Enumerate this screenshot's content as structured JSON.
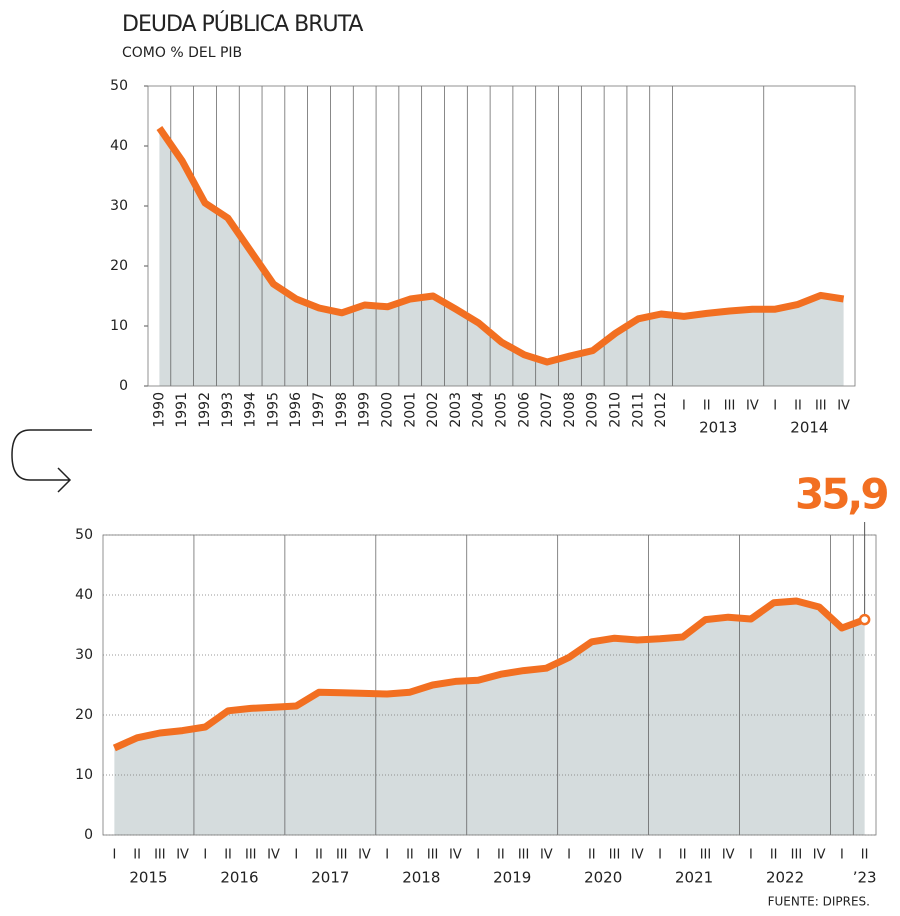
{
  "chart_data": [
    {
      "type": "area-line",
      "title": "DEUDA PÚBLICA BRUTA",
      "subtitle": "COMO % DEL PIB",
      "categories": [
        "1990",
        "1991",
        "1992",
        "1993",
        "1994",
        "1995",
        "1996",
        "1997",
        "1998",
        "1999",
        "2000",
        "2001",
        "2002",
        "2003",
        "2004",
        "2005",
        "2006",
        "2007",
        "2008",
        "2009",
        "2010",
        "2011",
        "2012",
        "I",
        "II",
        "III",
        "IV",
        "I",
        "II",
        "III",
        "IV"
      ],
      "groups": [
        {
          "label": "2013",
          "span": [
            23,
            26
          ]
        },
        {
          "label": "2014",
          "span": [
            27,
            30
          ]
        }
      ],
      "values": [
        43,
        37.5,
        30.5,
        28,
        22.5,
        17,
        14.5,
        13,
        12.2,
        13.5,
        13.2,
        14.5,
        15,
        12.8,
        10.5,
        7.3,
        5.2,
        4,
        5,
        5.9,
        8.8,
        11.2,
        12,
        11.6,
        12.1,
        12.5,
        12.8,
        12.8,
        13.6,
        15.1,
        14.5
      ],
      "color": "#f26f21",
      "fill": "#d5dcdd",
      "ylim": [
        0,
        50
      ],
      "yticks": [
        0,
        10,
        20,
        30,
        40,
        50
      ],
      "hgrid": false
    },
    {
      "type": "area-line",
      "categories": [
        "I",
        "II",
        "III",
        "IV",
        "I",
        "II",
        "III",
        "IV",
        "I",
        "II",
        "III",
        "IV",
        "I",
        "II",
        "III",
        "IV",
        "I",
        "II",
        "III",
        "IV",
        "I",
        "II",
        "III",
        "IV",
        "I",
        "II",
        "III",
        "IV",
        "I",
        "II",
        "III",
        "IV",
        "I",
        "II"
      ],
      "groups": [
        {
          "label": "2015",
          "span": [
            0,
            3
          ]
        },
        {
          "label": "2016",
          "span": [
            4,
            7
          ]
        },
        {
          "label": "2017",
          "span": [
            8,
            11
          ]
        },
        {
          "label": "2018",
          "span": [
            12,
            15
          ]
        },
        {
          "label": "2019",
          "span": [
            16,
            19
          ]
        },
        {
          "label": "2020",
          "span": [
            20,
            23
          ]
        },
        {
          "label": "2021",
          "span": [
            24,
            27
          ]
        },
        {
          "label": "2022",
          "span": [
            28,
            31
          ]
        },
        {
          "label": "’23",
          "span": [
            33,
            33
          ]
        }
      ],
      "values": [
        14.5,
        16.2,
        17,
        17.4,
        18,
        20.7,
        21.1,
        21.3,
        21.5,
        23.8,
        23.7,
        23.6,
        23.5,
        23.8,
        25,
        25.6,
        25.8,
        26.8,
        27.4,
        27.8,
        29.6,
        32.2,
        32.8,
        32.5,
        32.7,
        33,
        35.9,
        36.3,
        36,
        38.7,
        39,
        38,
        34.5,
        35.9
      ],
      "value_labels": [
        null,
        null,
        null,
        null,
        null,
        null,
        null,
        null,
        null,
        null,
        null,
        null,
        null,
        null,
        null,
        null,
        null,
        null,
        null,
        null,
        null,
        null,
        null,
        null,
        null,
        null,
        null,
        null,
        null,
        null,
        null,
        null,
        null,
        "35,9"
      ],
      "color": "#f26f21",
      "fill": "#d5dcdd",
      "ylim": [
        0,
        50
      ],
      "yticks": [
        0,
        10,
        20,
        30,
        40,
        50
      ],
      "hgrid": true,
      "source": "FUENTE: DIPRES."
    }
  ]
}
